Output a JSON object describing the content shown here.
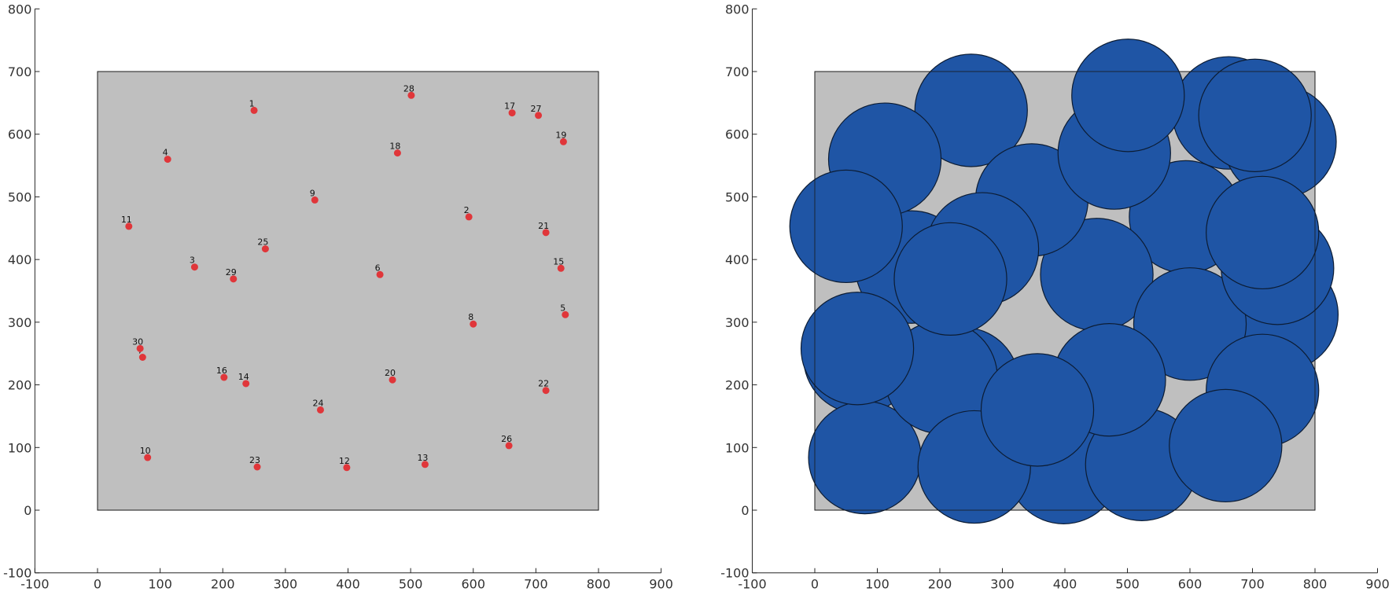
{
  "colors": {
    "domain_fill": "#bfbfbf",
    "point": "#e0363a",
    "disc": "#1f55a5",
    "axis": "#262626"
  },
  "chart_data": [
    {
      "type": "scatter",
      "title": "",
      "xlabel": "",
      "ylabel": "",
      "xlim": [
        -100,
        900
      ],
      "ylim": [
        -100,
        800
      ],
      "xticks": [
        -100,
        0,
        100,
        200,
        300,
        400,
        500,
        600,
        700,
        800,
        900
      ],
      "yticks": [
        -100,
        0,
        100,
        200,
        300,
        400,
        500,
        600,
        700,
        800
      ],
      "grid": false,
      "domain": {
        "x": [
          0,
          800
        ],
        "y": [
          0,
          700
        ]
      },
      "points": [
        {
          "id": "1",
          "x": 250,
          "y": 638
        },
        {
          "id": "2",
          "x": 593,
          "y": 468
        },
        {
          "id": "3",
          "x": 155,
          "y": 388
        },
        {
          "id": "4",
          "x": 112,
          "y": 560
        },
        {
          "id": "5",
          "x": 747,
          "y": 312
        },
        {
          "id": "6",
          "x": 451,
          "y": 376
        },
        {
          "id": "7",
          "x": 72,
          "y": 244
        },
        {
          "id": "8",
          "x": 600,
          "y": 297
        },
        {
          "id": "9",
          "x": 347,
          "y": 495
        },
        {
          "id": "10",
          "x": 80,
          "y": 84
        },
        {
          "id": "11",
          "x": 50,
          "y": 453
        },
        {
          "id": "12",
          "x": 398,
          "y": 68
        },
        {
          "id": "13",
          "x": 523,
          "y": 73
        },
        {
          "id": "14",
          "x": 237,
          "y": 202
        },
        {
          "id": "15",
          "x": 740,
          "y": 386
        },
        {
          "id": "16",
          "x": 202,
          "y": 212
        },
        {
          "id": "17",
          "x": 662,
          "y": 634
        },
        {
          "id": "18",
          "x": 479,
          "y": 570
        },
        {
          "id": "19",
          "x": 744,
          "y": 588
        },
        {
          "id": "20",
          "x": 471,
          "y": 208
        },
        {
          "id": "21",
          "x": 716,
          "y": 443
        },
        {
          "id": "22",
          "x": 716,
          "y": 191
        },
        {
          "id": "23",
          "x": 255,
          "y": 69
        },
        {
          "id": "24",
          "x": 356,
          "y": 160
        },
        {
          "id": "25",
          "x": 268,
          "y": 417
        },
        {
          "id": "26",
          "x": 657,
          "y": 103
        },
        {
          "id": "27",
          "x": 704,
          "y": 630
        },
        {
          "id": "28",
          "x": 501,
          "y": 662
        },
        {
          "id": "29",
          "x": 217,
          "y": 369
        },
        {
          "id": "30",
          "x": 68,
          "y": 258
        }
      ]
    },
    {
      "type": "scatter",
      "title": "",
      "xlabel": "",
      "ylabel": "",
      "xlim": [
        -100,
        900
      ],
      "ylim": [
        -100,
        800
      ],
      "xticks": [
        -100,
        0,
        100,
        200,
        300,
        400,
        500,
        600,
        700,
        800,
        900
      ],
      "yticks": [
        -100,
        0,
        100,
        200,
        300,
        400,
        500,
        600,
        700,
        800
      ],
      "grid": false,
      "domain": {
        "x": [
          0,
          800
        ],
        "y": [
          0,
          700
        ]
      },
      "radius": 90,
      "discs_from_points_of_first_chart": true
    }
  ]
}
